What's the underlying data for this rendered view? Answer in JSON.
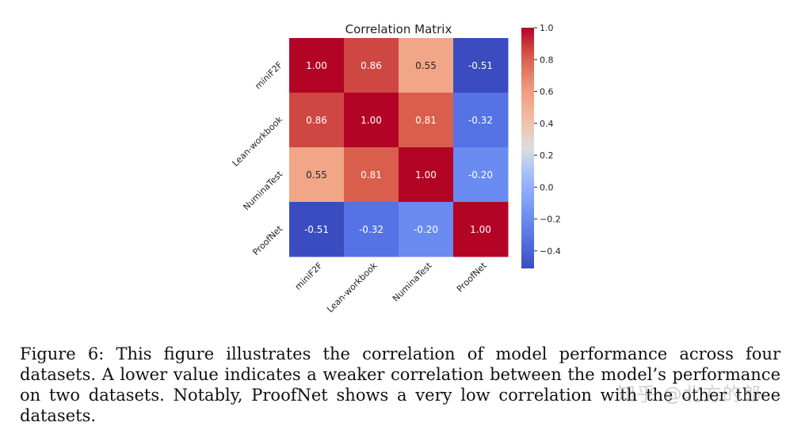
{
  "chart_data": {
    "type": "heatmap",
    "title": "Correlation Matrix",
    "rows": [
      "miniF2F",
      "Lean-workbook",
      "NuminaTest",
      "ProofNet"
    ],
    "columns": [
      "miniF2F",
      "Lean-workbook",
      "NuminaTest",
      "ProofNet"
    ],
    "values": [
      [
        1.0,
        0.86,
        0.55,
        -0.51
      ],
      [
        0.86,
        1.0,
        0.81,
        -0.32
      ],
      [
        0.55,
        0.81,
        1.0,
        -0.2
      ],
      [
        -0.51,
        -0.32,
        -0.2,
        1.0
      ]
    ],
    "colorbar": {
      "min": -0.51,
      "max": 1.0,
      "ticks": [
        1.0,
        0.8,
        0.6,
        0.4,
        0.2,
        0.0,
        -0.2,
        -0.4
      ],
      "tick_labels": [
        "1.0",
        "0.8",
        "0.6",
        "0.4",
        "0.2",
        "0.0",
        "−0.2",
        "−0.4"
      ],
      "colormap": "coolwarm"
    },
    "annotation_format": "2 decimals"
  },
  "caption": {
    "text": "Figure 6: This figure illustrates the correlation of model performance across four datasets. A lower value indicates a weaker correlation between the model’s performance on two datasets. Notably, ProofNet shows a very low correlation with the other three datasets."
  },
  "watermark": {
    "text": "知乎 @北方的郎"
  }
}
